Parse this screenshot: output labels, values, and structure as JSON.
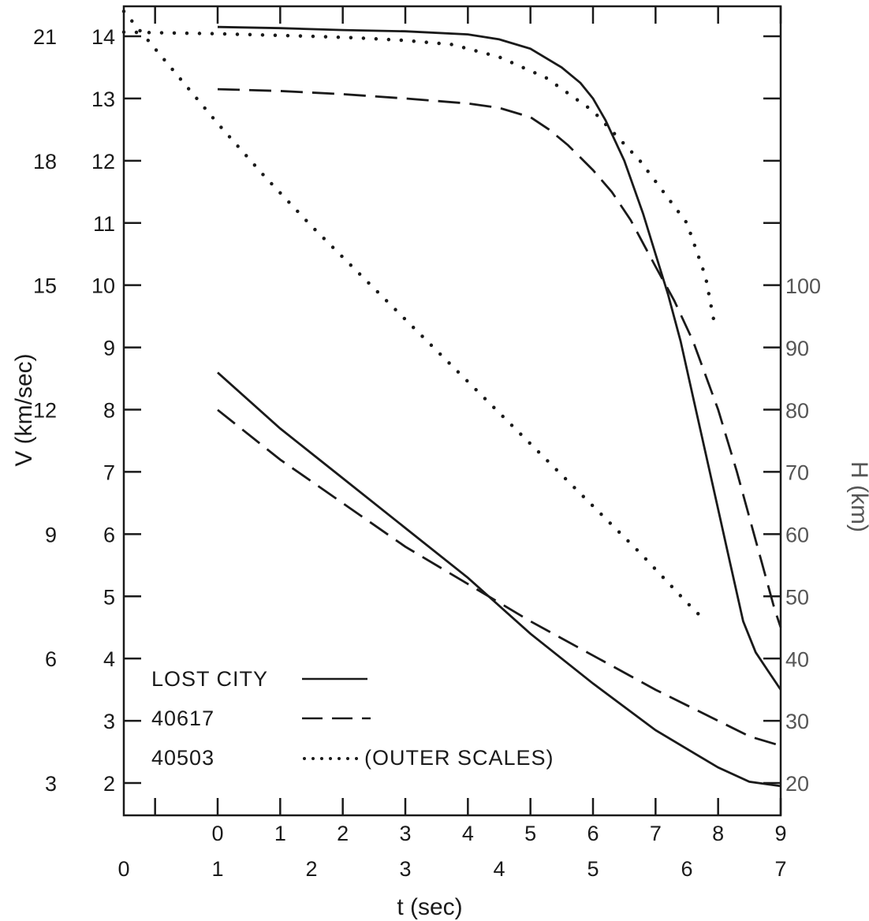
{
  "chart_data": {
    "type": "line",
    "xlabel": "t (sec)",
    "ylabel_left": "V (km/sec)",
    "ylabel_right": "H (km)",
    "x_axis_inner": {
      "range": [
        -1.5,
        9
      ],
      "ticks": [
        "0",
        "1",
        "2",
        "3",
        "4",
        "5",
        "6",
        "7",
        "8",
        "9"
      ]
    },
    "x_axis_outer": {
      "range": [
        0,
        7
      ],
      "ticks": [
        "0",
        "1",
        "2",
        "3",
        "4",
        "5",
        "6",
        "7"
      ]
    },
    "y_axis_inner": {
      "range": [
        1.5,
        14.5
      ],
      "ticks": [
        "2",
        "3",
        "4",
        "5",
        "6",
        "7",
        "8",
        "9",
        "10",
        "11",
        "12",
        "13",
        "14"
      ]
    },
    "y_axis_outer": {
      "ticks": [
        "3",
        "6",
        "9",
        "12",
        "15",
        "18",
        "21"
      ]
    },
    "y_axis_right": {
      "range": [
        15,
        145
      ],
      "ticks": [
        "20",
        "30",
        "40",
        "50",
        "60",
        "70",
        "80",
        "90",
        "100"
      ]
    },
    "legend": {
      "entries": [
        {
          "label": "LOST CITY",
          "style": "solid"
        },
        {
          "label": "40617",
          "style": "dashed"
        },
        {
          "label": "40503",
          "style": "dotted",
          "note": "(OUTER SCALES)"
        }
      ]
    },
    "series": [
      {
        "name": "LOST CITY",
        "quantity": "V",
        "scale": "inner",
        "style": "solid",
        "x": [
          0,
          1,
          2,
          3,
          4,
          4.5,
          5,
          5.5,
          5.8,
          6,
          6.2,
          6.5,
          6.8,
          7,
          7.2,
          7.4,
          7.6,
          7.8,
          8,
          8.2,
          8.4,
          8.6,
          8.8,
          9
        ],
        "y": [
          14.15,
          14.13,
          14.1,
          14.08,
          14.03,
          13.95,
          13.8,
          13.5,
          13.25,
          13.0,
          12.65,
          12.0,
          11.15,
          10.5,
          9.85,
          9.1,
          8.2,
          7.3,
          6.4,
          5.5,
          4.6,
          4.1,
          3.8,
          3.5
        ]
      },
      {
        "name": "40617",
        "quantity": "V",
        "scale": "inner",
        "style": "dashed",
        "x": [
          0,
          1,
          2,
          3,
          4,
          4.5,
          5,
          5.3,
          5.6,
          6,
          6.3,
          6.6,
          7,
          7.3,
          7.6,
          8,
          8.3,
          8.6,
          8.9,
          9
        ],
        "y": [
          13.15,
          13.12,
          13.07,
          13.0,
          12.92,
          12.85,
          12.7,
          12.5,
          12.25,
          11.85,
          11.5,
          11.05,
          10.3,
          9.75,
          9.1,
          8.0,
          7.0,
          5.9,
          4.8,
          4.5
        ]
      },
      {
        "name": "40503",
        "quantity": "V",
        "scale": "outer",
        "style": "dotted",
        "x": [
          0,
          0.5,
          1,
          1.5,
          2,
          2.5,
          3,
          3.5,
          4,
          4.5,
          5,
          5.5,
          6,
          6.2,
          6.3
        ],
        "y": [
          21.1,
          21.08,
          21.06,
          21.03,
          21.0,
          20.96,
          20.9,
          20.8,
          20.5,
          20.0,
          19.2,
          18.0,
          16.5,
          15.2,
          14.0
        ]
      },
      {
        "name": "LOST CITY",
        "quantity": "H",
        "scale": "inner",
        "style": "solid",
        "x": [
          0,
          1,
          2,
          3,
          4,
          5,
          6,
          7,
          8,
          8.5,
          9
        ],
        "y": [
          86,
          77,
          69,
          61,
          53,
          44,
          36,
          28.5,
          22.5,
          20.2,
          19.5
        ]
      },
      {
        "name": "40617",
        "quantity": "H",
        "scale": "inner",
        "style": "dashed",
        "x": [
          0,
          1,
          2,
          3,
          4,
          5,
          6,
          7,
          8,
          8.5,
          9
        ],
        "y": [
          80,
          72,
          65,
          58,
          52,
          46,
          40.5,
          35,
          30,
          27.5,
          26
        ]
      },
      {
        "name": "40503",
        "quantity": "H",
        "scale": "outer",
        "style": "dotted",
        "x": [
          0,
          0.5,
          1,
          1.5,
          2,
          2.5,
          3,
          3.5,
          4,
          4.5,
          5,
          5.5,
          6,
          6.2
        ],
        "y": [
          14.4,
          13.5,
          12.6,
          11.75,
          10.95,
          10.2,
          9.45,
          8.7,
          7.95,
          7.2,
          6.45,
          5.7,
          4.9,
          4.6
        ]
      }
    ]
  }
}
